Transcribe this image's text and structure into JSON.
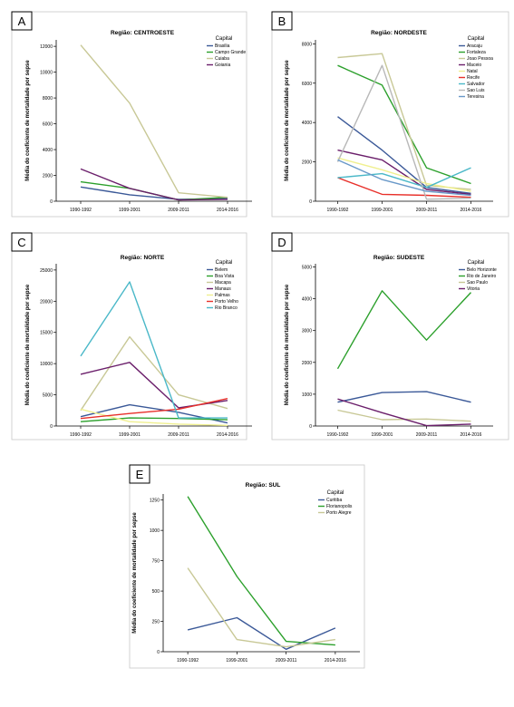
{
  "x_categories": [
    "1990-1992",
    "1999-2001",
    "2009-2011",
    "2014-2016"
  ],
  "ylabel": "Média do coeficiente de mortalidade por sepse",
  "legend_title": "Capital",
  "chart_data": [
    {
      "type": "line",
      "panel_label": "A",
      "title": "Região: CENTROESTE",
      "categories": [
        "1990-1992",
        "1999-2001",
        "2009-2011",
        "2014-2016"
      ],
      "ylim": [
        0,
        12500
      ],
      "yticks": [
        0,
        2000,
        4000,
        6000,
        8000,
        10000,
        12000
      ],
      "series": [
        {
          "name": "Brasilia",
          "color": "#3b5998",
          "values": [
            1100,
            500,
            150,
            200
          ]
        },
        {
          "name": "Campo Grande",
          "color": "#2ca02c",
          "values": [
            1500,
            1000,
            100,
            300
          ]
        },
        {
          "name": "Cuiaba",
          "color": "#c8c896",
          "values": [
            12100,
            7600,
            650,
            300
          ]
        },
        {
          "name": "Goiania",
          "color": "#6b1f6b",
          "values": [
            2500,
            1000,
            100,
            150
          ]
        }
      ]
    },
    {
      "type": "line",
      "panel_label": "B",
      "title": "Região: NORDESTE",
      "categories": [
        "1990-1992",
        "1999-2001",
        "2009-2011",
        "2014-2016"
      ],
      "ylim": [
        0,
        8200
      ],
      "yticks": [
        0,
        2000,
        4000,
        6000,
        8000
      ],
      "series": [
        {
          "name": "Aracaju",
          "color": "#3b5998",
          "values": [
            4300,
            2600,
            700,
            400
          ]
        },
        {
          "name": "Fortaleza",
          "color": "#2ca02c",
          "values": [
            6900,
            5900,
            1700,
            900
          ]
        },
        {
          "name": "Joao Pessoa",
          "color": "#c8c896",
          "values": [
            7300,
            7500,
            800,
            600
          ]
        },
        {
          "name": "Maceio",
          "color": "#6b1f6b",
          "values": [
            2600,
            2100,
            600,
            350
          ]
        },
        {
          "name": "Natal",
          "color": "#f0f090",
          "values": [
            2200,
            1600,
            900,
            500
          ]
        },
        {
          "name": "Recife",
          "color": "#e8302a",
          "values": [
            1200,
            350,
            300,
            200
          ]
        },
        {
          "name": "Salvador",
          "color": "#4ab8c8",
          "values": [
            1200,
            1400,
            700,
            1700
          ]
        },
        {
          "name": "Sao Luis",
          "color": "#b8b8b8",
          "values": [
            2000,
            6900,
            100,
            150
          ]
        },
        {
          "name": "Teresina",
          "color": "#6898c8",
          "values": [
            2100,
            1100,
            500,
            300
          ]
        }
      ]
    },
    {
      "type": "line",
      "panel_label": "C",
      "title": "Região: NORTE",
      "categories": [
        "1990-1992",
        "1999-2001",
        "2009-2011",
        "2014-2016"
      ],
      "ylim": [
        0,
        26000
      ],
      "yticks": [
        0,
        5000,
        10000,
        15000,
        20000,
        25000
      ],
      "series": [
        {
          "name": "Belem",
          "color": "#3b5998",
          "values": [
            1500,
            3400,
            2200,
            500
          ]
        },
        {
          "name": "Boa Vista",
          "color": "#2ca02c",
          "values": [
            700,
            1300,
            1200,
            1000
          ]
        },
        {
          "name": "Macapa",
          "color": "#c8c896",
          "values": [
            2500,
            14300,
            5000,
            2800
          ]
        },
        {
          "name": "Manaus",
          "color": "#6b1f6b",
          "values": [
            8300,
            10200,
            2900,
            4100
          ]
        },
        {
          "name": "Palmas",
          "color": "#f0f090",
          "values": [
            2700,
            700,
            300,
            100
          ]
        },
        {
          "name": "Porto Velho",
          "color": "#e8302a",
          "values": [
            1200,
            2000,
            2700,
            4400
          ]
        },
        {
          "name": "Rio Branco",
          "color": "#4ab8c8",
          "values": [
            11200,
            23100,
            1300,
            1300
          ]
        }
      ]
    },
    {
      "type": "line",
      "panel_label": "D",
      "title": "Região: SUDESTE",
      "categories": [
        "1990-1992",
        "1999-2001",
        "2009-2011",
        "2014-2016"
      ],
      "ylim": [
        0,
        5100
      ],
      "yticks": [
        0,
        1000,
        2000,
        3000,
        4000,
        5000
      ],
      "series": [
        {
          "name": "Belo Horizonte",
          "color": "#3b5998",
          "values": [
            750,
            1050,
            1080,
            750
          ]
        },
        {
          "name": "Rio de Janeiro",
          "color": "#2ca02c",
          "values": [
            1800,
            4250,
            2700,
            4200
          ]
        },
        {
          "name": "Sao Paulo",
          "color": "#c8c896",
          "values": [
            500,
            200,
            220,
            150
          ]
        },
        {
          "name": "Vitoria",
          "color": "#6b1f6b",
          "values": [
            850,
            420,
            10,
            60
          ]
        }
      ]
    },
    {
      "type": "line",
      "panel_label": "E",
      "title": "Região: SUL",
      "categories": [
        "1990-1992",
        "1999-2001",
        "2009-2011",
        "2014-2016"
      ],
      "ylim": [
        0,
        1300
      ],
      "yticks": [
        0,
        250,
        500,
        750,
        1000,
        1250
      ],
      "series": [
        {
          "name": "Curitiba",
          "color": "#3b5998",
          "values": [
            180,
            280,
            20,
            195
          ]
        },
        {
          "name": "Florianopolis",
          "color": "#2ca02c",
          "values": [
            1280,
            620,
            85,
            55
          ]
        },
        {
          "name": "Porto Alegre",
          "color": "#c8c896",
          "values": [
            690,
            100,
            40,
            100
          ]
        }
      ]
    }
  ]
}
